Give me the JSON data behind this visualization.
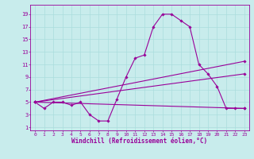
{
  "background_color": "#c8ecec",
  "line_color": "#990099",
  "grid_color": "#aadddd",
  "xlabel": "Windchill (Refroidissement éolien,°C)",
  "xlabel_fontsize": 5.5,
  "xticks": [
    0,
    1,
    2,
    3,
    4,
    5,
    6,
    7,
    8,
    9,
    10,
    11,
    12,
    13,
    14,
    15,
    16,
    17,
    18,
    19,
    20,
    21,
    22,
    23
  ],
  "yticks": [
    1,
    3,
    5,
    7,
    9,
    11,
    13,
    15,
    17,
    19
  ],
  "xlim": [
    -0.5,
    23.5
  ],
  "ylim": [
    0.5,
    20.5
  ],
  "line1_x": [
    0,
    1,
    2,
    3,
    4,
    5,
    6,
    7,
    8,
    9,
    10,
    11,
    12,
    13,
    14,
    15,
    16,
    17,
    18,
    19,
    20,
    21,
    22,
    23
  ],
  "line1_y": [
    5,
    4,
    5,
    5,
    4.5,
    5,
    3,
    2,
    2,
    5.5,
    9,
    12,
    12.5,
    17,
    19,
    19,
    18,
    17,
    11,
    9.5,
    7.5,
    4,
    4,
    4
  ],
  "line2_x": [
    0,
    23
  ],
  "line2_y": [
    5,
    4
  ],
  "line3_x": [
    0,
    23
  ],
  "line3_y": [
    5,
    9.5
  ],
  "line4_x": [
    0,
    23
  ],
  "line4_y": [
    5,
    11.5
  ]
}
